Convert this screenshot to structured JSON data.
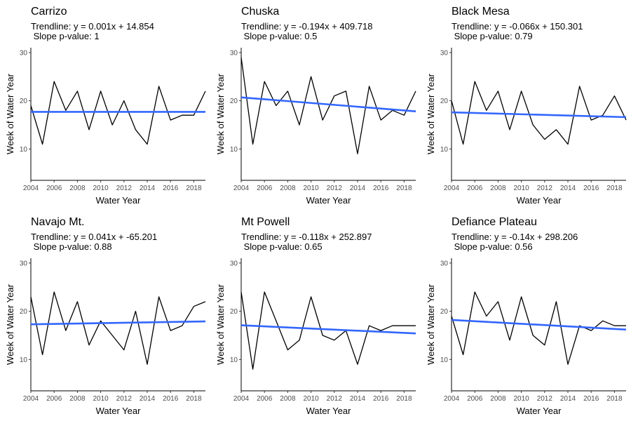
{
  "chart_data": [
    {
      "type": "line",
      "title": "Carrizo",
      "subtitle_line1": "Trendline: y = 0.001x + 14.854",
      "subtitle_line2": " Slope p-value: 1",
      "xlabel": "Water Year",
      "ylabel": "Week of Water Year",
      "xlim": [
        2004,
        2019
      ],
      "ylim": [
        3.5,
        31
      ],
      "x_ticks": [
        "2004",
        "2006",
        "2008",
        "2010",
        "2012",
        "2014",
        "2016",
        "2018"
      ],
      "y_ticks": [
        "10",
        "20",
        "30"
      ],
      "series": [
        {
          "x": [
            2004,
            2005,
            2006,
            2007,
            2008,
            2009,
            2010,
            2011,
            2012,
            2013,
            2014,
            2015,
            2016,
            2017,
            2018,
            2019
          ],
          "values": [
            19,
            11,
            24,
            18,
            22,
            14,
            22,
            15,
            20,
            14,
            11,
            23,
            16,
            17,
            17,
            22
          ]
        }
      ],
      "trendline": {
        "start": 17.7,
        "end": 17.7
      },
      "colors": {
        "series": "#000000",
        "trend": "#3366ff"
      }
    },
    {
      "type": "line",
      "title": "Chuska",
      "subtitle_line1": "Trendline: y = -0.194x + 409.718",
      "subtitle_line2": " Slope p-value: 0.5",
      "xlabel": "Water Year",
      "ylabel": "Week of Water Year",
      "xlim": [
        2004,
        2019
      ],
      "ylim": [
        3.5,
        31
      ],
      "x_ticks": [
        "2004",
        "2006",
        "2008",
        "2010",
        "2012",
        "2014",
        "2016",
        "2018"
      ],
      "y_ticks": [
        "10",
        "20",
        "30"
      ],
      "series": [
        {
          "x": [
            2004,
            2005,
            2006,
            2007,
            2008,
            2009,
            2010,
            2011,
            2012,
            2013,
            2014,
            2015,
            2016,
            2017,
            2018,
            2019
          ],
          "values": [
            29,
            11,
            24,
            19,
            22,
            15,
            25,
            16,
            21,
            22,
            9,
            23,
            16,
            18,
            17,
            22
          ]
        }
      ],
      "trendline": {
        "start": 20.7,
        "end": 17.8
      },
      "colors": {
        "series": "#000000",
        "trend": "#3366ff"
      }
    },
    {
      "type": "line",
      "title": "Black Mesa",
      "subtitle_line1": "Trendline: y = -0.066x + 150.301",
      "subtitle_line2": " Slope p-value: 0.79",
      "xlabel": "Water Year",
      "ylabel": "Week of Water Year",
      "xlim": [
        2004,
        2019
      ],
      "ylim": [
        3.5,
        31
      ],
      "x_ticks": [
        "2004",
        "2006",
        "2008",
        "2010",
        "2012",
        "2014",
        "2016",
        "2018"
      ],
      "y_ticks": [
        "10",
        "20",
        "30"
      ],
      "series": [
        {
          "x": [
            2004,
            2005,
            2006,
            2007,
            2008,
            2009,
            2010,
            2011,
            2012,
            2013,
            2014,
            2015,
            2016,
            2017,
            2018,
            2019
          ],
          "values": [
            20,
            11,
            24,
            18,
            22,
            14,
            22,
            15,
            12,
            14,
            11,
            23,
            16,
            17,
            21,
            16
          ]
        }
      ],
      "trendline": {
        "start": 17.6,
        "end": 16.6
      },
      "colors": {
        "series": "#000000",
        "trend": "#3366ff"
      }
    },
    {
      "type": "line",
      "title": "Navajo Mt.",
      "subtitle_line1": "Trendline: y = 0.041x + -65.201",
      "subtitle_line2": " Slope p-value: 0.88",
      "xlabel": "Water Year",
      "ylabel": "Week of Water Year",
      "xlim": [
        2004,
        2019
      ],
      "ylim": [
        3.5,
        31
      ],
      "x_ticks": [
        "2004",
        "2006",
        "2008",
        "2010",
        "2012",
        "2014",
        "2016",
        "2018"
      ],
      "y_ticks": [
        "10",
        "20",
        "30"
      ],
      "series": [
        {
          "x": [
            2004,
            2005,
            2006,
            2007,
            2008,
            2009,
            2010,
            2011,
            2012,
            2013,
            2014,
            2015,
            2016,
            2017,
            2018,
            2019
          ],
          "values": [
            23,
            11,
            24,
            16,
            22,
            13,
            18,
            15,
            12,
            20,
            9,
            23,
            16,
            17,
            21,
            22
          ]
        }
      ],
      "trendline": {
        "start": 17.3,
        "end": 17.9
      },
      "colors": {
        "series": "#000000",
        "trend": "#3366ff"
      }
    },
    {
      "type": "line",
      "title": "Mt Powell",
      "subtitle_line1": "Trendline: y = -0.118x + 252.897",
      "subtitle_line2": " Slope p-value: 0.65",
      "xlabel": "Water Year",
      "ylabel": "Week of Water Year",
      "xlim": [
        2004,
        2019
      ],
      "ylim": [
        3.5,
        31
      ],
      "x_ticks": [
        "2004",
        "2006",
        "2008",
        "2010",
        "2012",
        "2014",
        "2016",
        "2018"
      ],
      "y_ticks": [
        "10",
        "20",
        "30"
      ],
      "series": [
        {
          "x": [
            2004,
            2005,
            2006,
            2007,
            2008,
            2009,
            2010,
            2011,
            2012,
            2013,
            2014,
            2015,
            2016,
            2017,
            2018,
            2019
          ],
          "values": [
            24,
            8,
            24,
            18,
            12,
            14,
            23,
            15,
            14,
            16,
            9,
            17,
            16,
            17,
            17,
            17
          ]
        }
      ],
      "trendline": {
        "start": 17.1,
        "end": 15.4
      },
      "colors": {
        "series": "#000000",
        "trend": "#3366ff"
      }
    },
    {
      "type": "line",
      "title": "Defiance Plateau",
      "subtitle_line1": "Trendline: y = -0.14x + 298.206",
      "subtitle_line2": " Slope p-value: 0.56",
      "xlabel": "Water Year",
      "ylabel": "Week of Water Year",
      "xlim": [
        2004,
        2019
      ],
      "ylim": [
        3.5,
        31
      ],
      "x_ticks": [
        "2004",
        "2006",
        "2008",
        "2010",
        "2012",
        "2014",
        "2016",
        "2018"
      ],
      "y_ticks": [
        "10",
        "20",
        "30"
      ],
      "series": [
        {
          "x": [
            2004,
            2005,
            2006,
            2007,
            2008,
            2009,
            2010,
            2011,
            2012,
            2013,
            2014,
            2015,
            2016,
            2017,
            2018,
            2019
          ],
          "values": [
            19,
            11,
            24,
            19,
            22,
            14,
            23,
            15,
            13,
            22,
            9,
            17,
            16,
            18,
            17,
            17
          ]
        }
      ],
      "trendline": {
        "start": 18.2,
        "end": 16.2
      },
      "colors": {
        "series": "#000000",
        "trend": "#3366ff"
      }
    }
  ]
}
